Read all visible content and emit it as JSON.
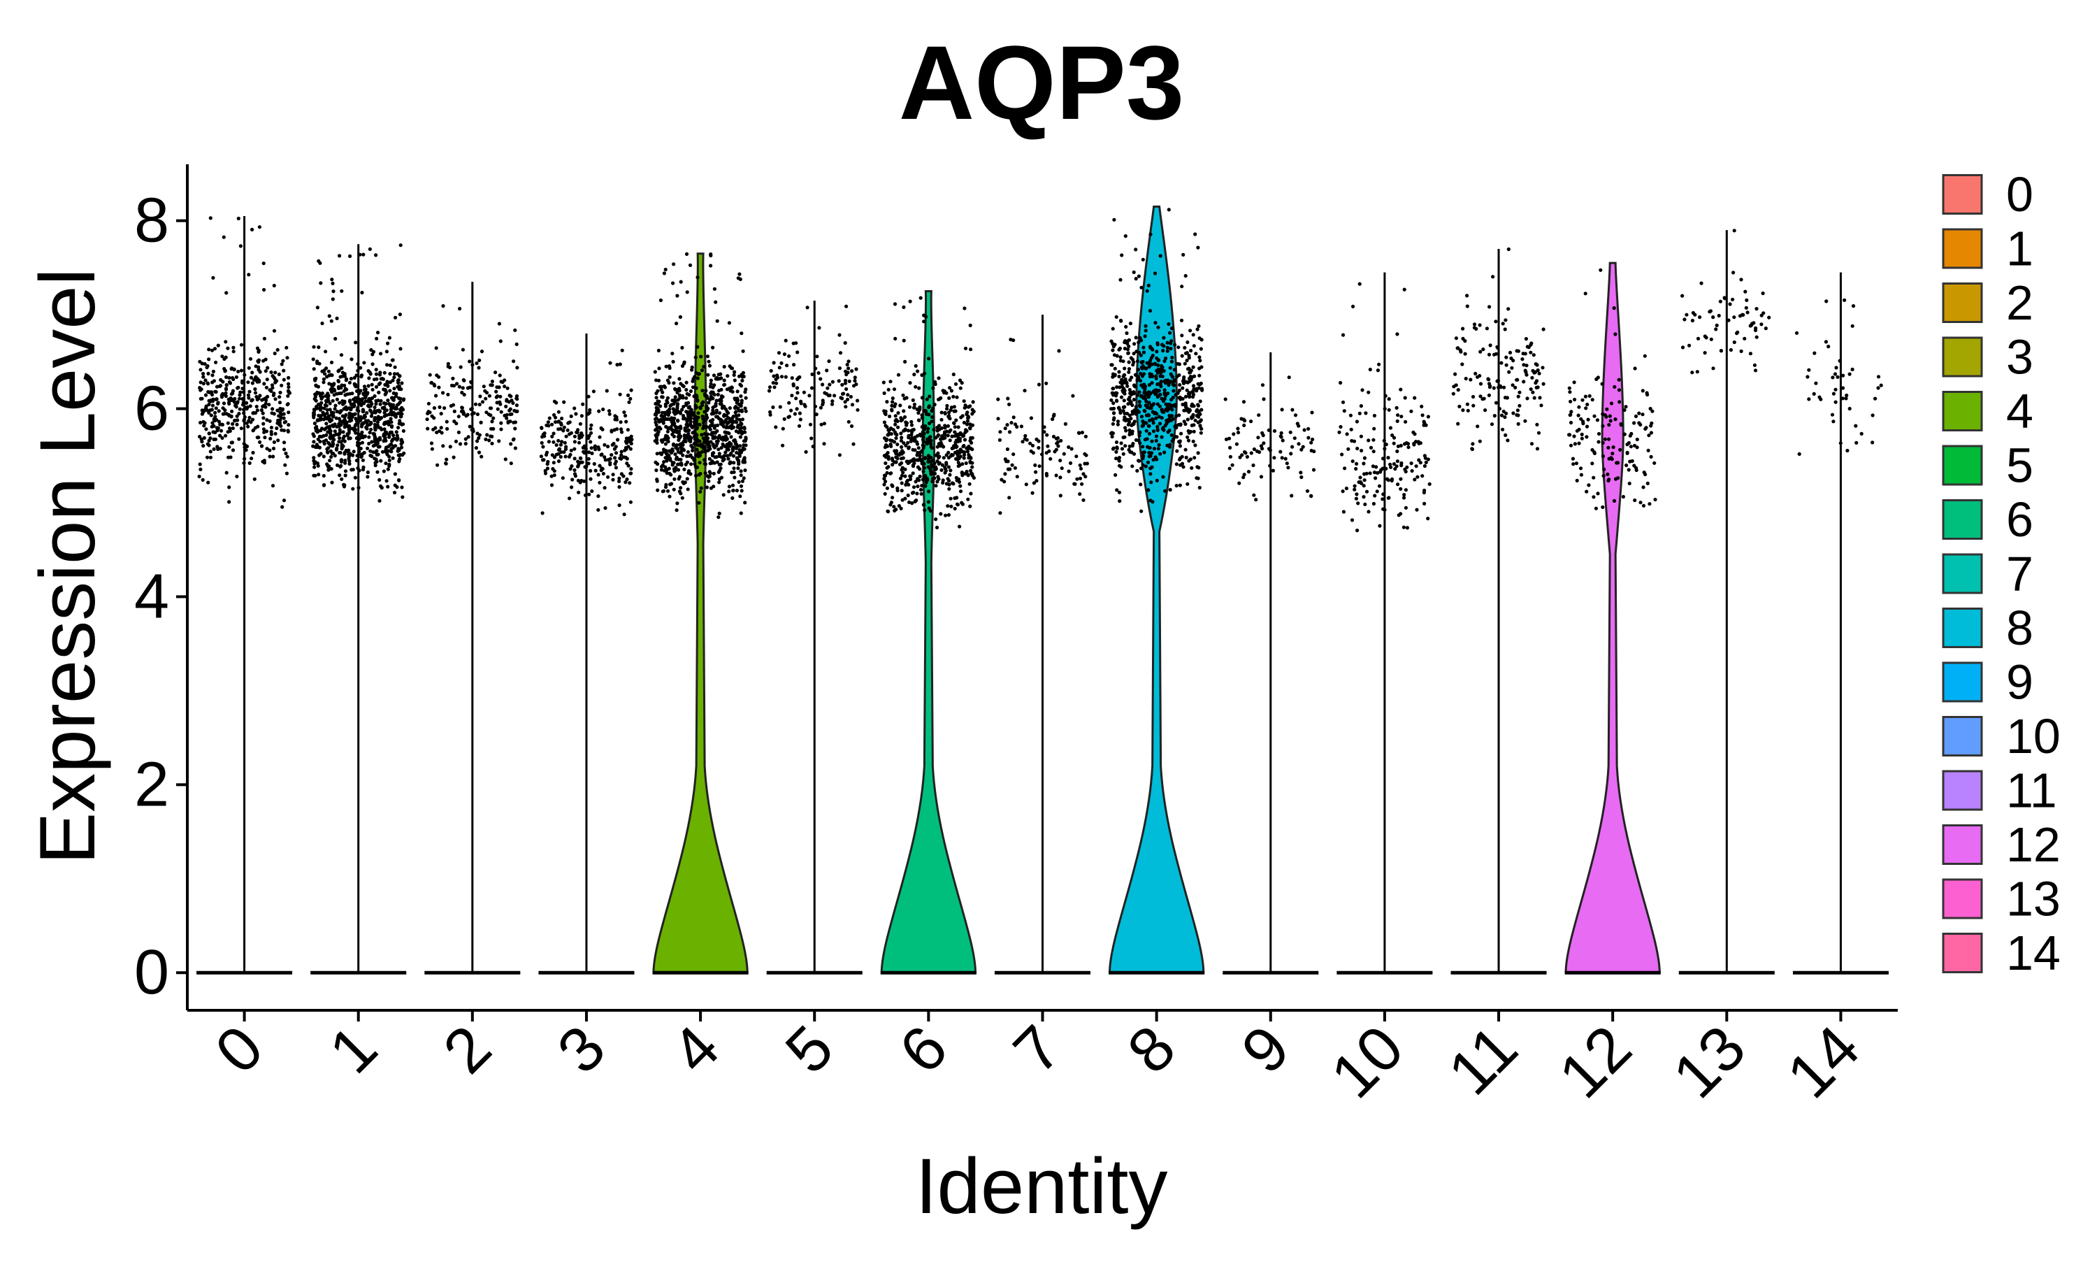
{
  "chart_data": {
    "type": "violin",
    "title": "AQP3",
    "xlabel": "Identity",
    "ylabel": "Expression Level",
    "ylim": [
      -0.4,
      8.6
    ],
    "yticks": [
      0,
      2,
      4,
      6,
      8
    ],
    "categories": [
      "0",
      "1",
      "2",
      "3",
      "4",
      "5",
      "6",
      "7",
      "8",
      "9",
      "10",
      "11",
      "12",
      "13",
      "14"
    ],
    "x_tick_rotation_deg": -45,
    "legend": {
      "position": "right",
      "labels": [
        "0",
        "1",
        "2",
        "3",
        "4",
        "5",
        "6",
        "7",
        "8",
        "9",
        "10",
        "11",
        "12",
        "13",
        "14"
      ]
    },
    "series": [
      {
        "name": "0",
        "color": "#F8766D",
        "max": 8.05,
        "expressing_center": 6.0,
        "expressing_spread": 0.5,
        "point_density": 1.0,
        "violin_visible": false
      },
      {
        "name": "1",
        "color": "#E58700",
        "max": 7.75,
        "expressing_center": 5.9,
        "expressing_spread": 0.5,
        "point_density": 1.9,
        "violin_visible": false
      },
      {
        "name": "2",
        "color": "#C99800",
        "max": 7.35,
        "expressing_center": 6.0,
        "expressing_spread": 0.4,
        "point_density": 0.45,
        "violin_visible": false
      },
      {
        "name": "3",
        "color": "#A3A500",
        "max": 6.8,
        "expressing_center": 5.6,
        "expressing_spread": 0.4,
        "point_density": 0.6,
        "violin_visible": false
      },
      {
        "name": "4",
        "color": "#6BB100",
        "max": 7.65,
        "expressing_center": 5.8,
        "expressing_spread": 0.5,
        "point_density": 2.0,
        "violin_visible": true
      },
      {
        "name": "5",
        "color": "#00BA38",
        "max": 7.15,
        "expressing_center": 6.2,
        "expressing_spread": 0.4,
        "point_density": 0.3,
        "violin_visible": false
      },
      {
        "name": "6",
        "color": "#00BF7D",
        "max": 7.25,
        "expressing_center": 5.6,
        "expressing_spread": 0.5,
        "point_density": 1.4,
        "violin_visible": true
      },
      {
        "name": "7",
        "color": "#00C0AF",
        "max": 7.0,
        "expressing_center": 5.6,
        "expressing_spread": 0.5,
        "point_density": 0.25,
        "violin_visible": false
      },
      {
        "name": "8",
        "color": "#00BCD8",
        "max": 8.15,
        "expressing_center": 6.1,
        "expressing_spread": 0.6,
        "point_density": 1.6,
        "violin_visible": true
      },
      {
        "name": "9",
        "color": "#00B0F6",
        "max": 6.6,
        "expressing_center": 5.6,
        "expressing_spread": 0.4,
        "point_density": 0.2,
        "violin_visible": false
      },
      {
        "name": "10",
        "color": "#619CFF",
        "max": 7.45,
        "expressing_center": 5.5,
        "expressing_spread": 0.6,
        "point_density": 0.4,
        "violin_visible": false
      },
      {
        "name": "11",
        "color": "#B983FF",
        "max": 7.7,
        "expressing_center": 6.3,
        "expressing_spread": 0.5,
        "point_density": 0.35,
        "violin_visible": false
      },
      {
        "name": "12",
        "color": "#E76BF3",
        "max": 7.55,
        "expressing_center": 5.7,
        "expressing_spread": 0.5,
        "point_density": 0.35,
        "violin_visible": true
      },
      {
        "name": "13",
        "color": "#FD61D1",
        "max": 7.9,
        "expressing_center": 6.9,
        "expressing_spread": 0.4,
        "point_density": 0.15,
        "violin_visible": false
      },
      {
        "name": "14",
        "color": "#FF67A4",
        "max": 7.45,
        "expressing_center": 6.2,
        "expressing_spread": 0.5,
        "point_density": 0.1,
        "violin_visible": false
      }
    ]
  }
}
